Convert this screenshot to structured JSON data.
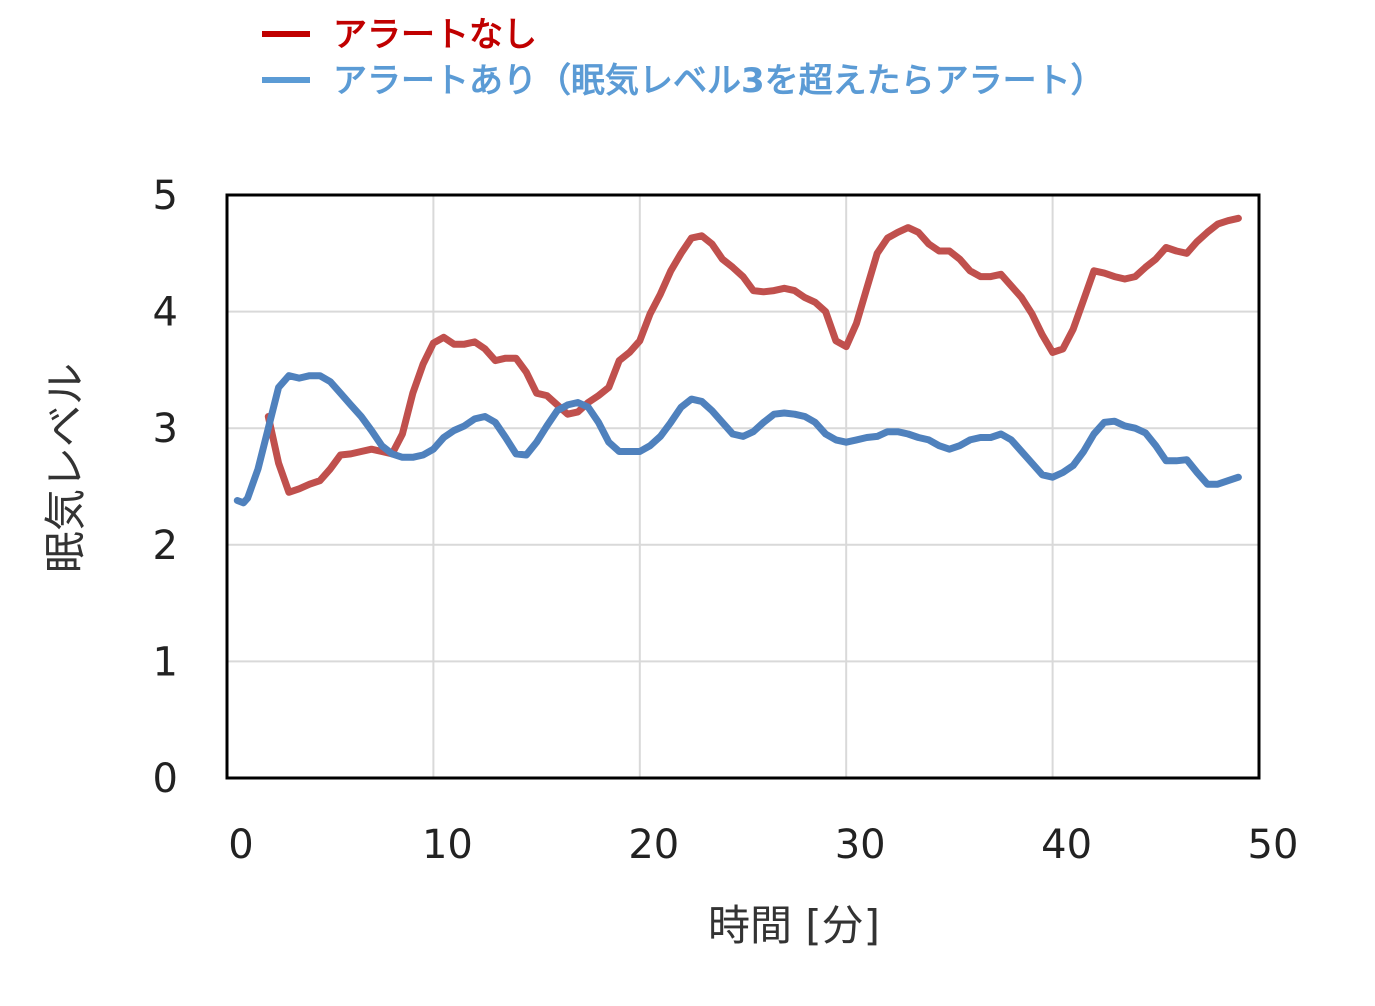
{
  "chart_data": {
    "type": "line",
    "title": "",
    "xlabel": "時間 [分]",
    "ylabel": "眠気レベル",
    "xlim": [
      0,
      50
    ],
    "ylim": [
      0,
      5
    ],
    "xticks": [
      "0",
      "10",
      "20",
      "30",
      "40",
      "50"
    ],
    "yticks": [
      "0",
      "1",
      "2",
      "3",
      "4",
      "5"
    ],
    "grid": true,
    "legend_position": "top-left (above plot)",
    "series": [
      {
        "name": "アラートなし",
        "color": "#c0504d",
        "legend_color": "#c00000",
        "x": [
          2.0,
          2.5,
          3.0,
          3.5,
          4.0,
          4.5,
          5.0,
          5.5,
          6.0,
          6.5,
          7.0,
          7.5,
          8.0,
          8.5,
          9.0,
          9.5,
          10.0,
          10.5,
          11.0,
          11.5,
          12.0,
          12.5,
          13.0,
          13.5,
          14.0,
          14.5,
          15.0,
          15.5,
          16.0,
          16.5,
          17.0,
          17.5,
          18.0,
          18.5,
          19.0,
          19.5,
          20.0,
          20.5,
          21.0,
          21.5,
          22.0,
          22.5,
          23.0,
          23.5,
          24.0,
          24.5,
          25.0,
          25.5,
          26.0,
          26.5,
          27.0,
          27.5,
          28.0,
          28.5,
          29.0,
          29.5,
          30.0,
          30.5,
          31.0,
          31.5,
          32.0,
          32.5,
          33.0,
          33.5,
          34.0,
          34.5,
          35.0,
          35.5,
          36.0,
          36.5,
          37.0,
          37.5,
          38.0,
          38.5,
          39.0,
          39.5,
          40.0,
          40.5,
          41.0,
          41.5,
          42.0,
          42.5,
          43.0,
          43.5,
          44.0,
          44.5,
          45.0,
          45.5,
          46.0,
          46.5,
          47.0,
          47.5,
          48.0,
          48.5,
          49.0
        ],
        "y": [
          3.1,
          2.7,
          2.45,
          2.48,
          2.52,
          2.55,
          2.65,
          2.77,
          2.78,
          2.8,
          2.82,
          2.8,
          2.78,
          2.95,
          3.3,
          3.55,
          3.73,
          3.78,
          3.72,
          3.72,
          3.74,
          3.68,
          3.58,
          3.6,
          3.6,
          3.48,
          3.3,
          3.28,
          3.2,
          3.12,
          3.14,
          3.22,
          3.28,
          3.35,
          3.58,
          3.65,
          3.75,
          3.98,
          4.15,
          4.35,
          4.5,
          4.63,
          4.65,
          4.58,
          4.45,
          4.38,
          4.3,
          4.18,
          4.17,
          4.18,
          4.2,
          4.18,
          4.12,
          4.08,
          4.0,
          3.75,
          3.7,
          3.9,
          4.2,
          4.5,
          4.63,
          4.68,
          4.72,
          4.68,
          4.58,
          4.52,
          4.52,
          4.45,
          4.35,
          4.3,
          4.3,
          4.32,
          4.22,
          4.12,
          3.98,
          3.8,
          3.65,
          3.68,
          3.85,
          4.1,
          4.35,
          4.33,
          4.3,
          4.28,
          4.3,
          4.38,
          4.45,
          4.55,
          4.52,
          4.5,
          4.6,
          4.68,
          4.75,
          4.78,
          4.8
        ]
      },
      {
        "name": "アラートあり（眠気レベル3を超えたらアラート）",
        "color": "#4f81bd",
        "legend_color": "#5b9bd5",
        "x": [
          0.5,
          0.8,
          1.0,
          1.5,
          2.0,
          2.5,
          3.0,
          3.5,
          4.0,
          4.5,
          5.0,
          5.5,
          6.0,
          6.5,
          7.0,
          7.5,
          8.0,
          8.5,
          9.0,
          9.5,
          10.0,
          10.5,
          11.0,
          11.5,
          12.0,
          12.5,
          13.0,
          13.5,
          14.0,
          14.5,
          15.0,
          15.5,
          16.0,
          16.5,
          17.0,
          17.5,
          18.0,
          18.5,
          19.0,
          19.5,
          20.0,
          20.5,
          21.0,
          21.5,
          22.0,
          22.5,
          23.0,
          23.5,
          24.0,
          24.5,
          25.0,
          25.5,
          26.0,
          26.5,
          27.0,
          27.5,
          28.0,
          28.5,
          29.0,
          29.5,
          30.0,
          30.5,
          31.0,
          31.5,
          32.0,
          32.5,
          33.0,
          33.5,
          34.0,
          34.5,
          35.0,
          35.5,
          36.0,
          36.5,
          37.0,
          37.5,
          38.0,
          38.5,
          39.0,
          39.5,
          40.0,
          40.5,
          41.0,
          41.5,
          42.0,
          42.5,
          43.0,
          43.5,
          44.0,
          44.5,
          45.0,
          45.5,
          46.0,
          46.5,
          47.0,
          47.5,
          48.0,
          48.5,
          49.0
        ],
        "y": [
          2.38,
          2.36,
          2.4,
          2.65,
          3.0,
          3.35,
          3.45,
          3.43,
          3.45,
          3.45,
          3.4,
          3.3,
          3.2,
          3.1,
          2.98,
          2.85,
          2.78,
          2.75,
          2.75,
          2.77,
          2.82,
          2.92,
          2.98,
          3.02,
          3.08,
          3.1,
          3.05,
          2.92,
          2.78,
          2.77,
          2.88,
          3.02,
          3.15,
          3.2,
          3.22,
          3.18,
          3.05,
          2.88,
          2.8,
          2.8,
          2.8,
          2.85,
          2.93,
          3.05,
          3.18,
          3.25,
          3.23,
          3.15,
          3.05,
          2.95,
          2.93,
          2.97,
          3.05,
          3.12,
          3.13,
          3.12,
          3.1,
          3.05,
          2.95,
          2.9,
          2.88,
          2.9,
          2.92,
          2.93,
          2.97,
          2.97,
          2.95,
          2.92,
          2.9,
          2.85,
          2.82,
          2.85,
          2.9,
          2.92,
          2.92,
          2.95,
          2.9,
          2.8,
          2.7,
          2.6,
          2.58,
          2.62,
          2.68,
          2.8,
          2.95,
          3.05,
          3.06,
          3.02,
          3.0,
          2.96,
          2.85,
          2.72,
          2.72,
          2.73,
          2.62,
          2.52,
          2.52,
          2.55,
          2.58
        ]
      }
    ]
  }
}
